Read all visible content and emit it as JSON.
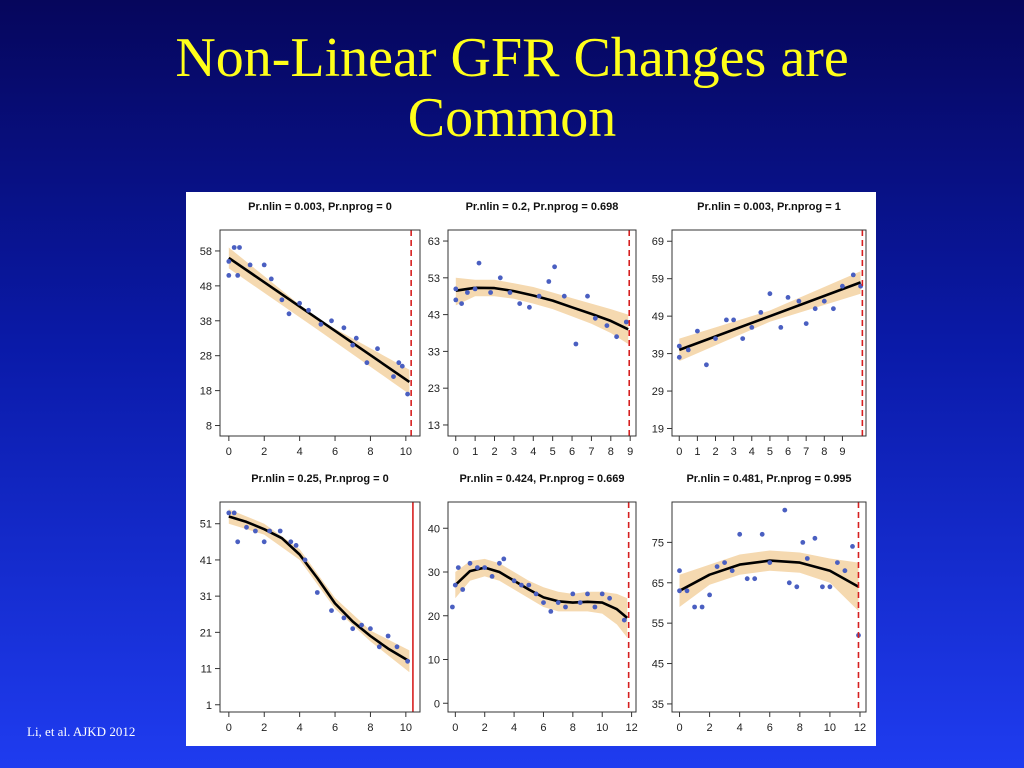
{
  "slide": {
    "title_line1": "Non-Linear GFR Changes are",
    "title_line2": "Common",
    "citation": "Li, et al. AJKD 2012",
    "colors": {
      "title": "#ffff1a",
      "background_top": "#06065c",
      "background_bottom": "#1f3cf0",
      "points": "#4a5fc1",
      "fit_line": "#000000",
      "confidence_band": "#f5d9b0",
      "vline": "#d62020"
    }
  },
  "chart_data": [
    {
      "type": "scatter",
      "title": "Pr.nlin = 0.003, Pr.nprog = 0",
      "xlim": [
        -0.5,
        10.8
      ],
      "ylim": [
        5,
        64
      ],
      "xticks": [
        0,
        2,
        4,
        6,
        8,
        10
      ],
      "yticks": [
        8,
        18,
        28,
        38,
        48,
        58
      ],
      "vline": {
        "x": 10.3,
        "style": "dashed"
      },
      "points": [
        [
          0,
          55
        ],
        [
          0,
          51
        ],
        [
          0.3,
          59
        ],
        [
          0.5,
          51
        ],
        [
          0.6,
          59
        ],
        [
          1.2,
          54
        ],
        [
          2,
          54
        ],
        [
          2.4,
          50
        ],
        [
          3,
          44
        ],
        [
          3.4,
          40
        ],
        [
          4,
          43
        ],
        [
          4.5,
          41
        ],
        [
          5.2,
          37
        ],
        [
          5.8,
          38
        ],
        [
          6.5,
          36
        ],
        [
          7.2,
          33
        ],
        [
          7.8,
          26
        ],
        [
          8.4,
          30
        ],
        [
          9.3,
          22
        ],
        [
          9.8,
          25
        ],
        [
          10.1,
          17
        ],
        [
          9.6,
          26
        ],
        [
          7,
          31
        ]
      ],
      "fit": [
        [
          0,
          56
        ],
        [
          10.2,
          20.5
        ]
      ],
      "band": {
        "upper": [
          [
            0,
            59
          ],
          [
            5,
            38.5
          ],
          [
            10.2,
            24
          ]
        ],
        "lower": [
          [
            0,
            53
          ],
          [
            5,
            35.5
          ],
          [
            10.2,
            17
          ]
        ]
      }
    },
    {
      "type": "scatter",
      "title": "Pr.nlin = 0.2, Pr.nprog = 0.698",
      "xlim": [
        -0.4,
        9.3
      ],
      "ylim": [
        10,
        66
      ],
      "xticks": [
        0,
        1,
        2,
        3,
        4,
        5,
        6,
        7,
        8,
        9
      ],
      "yticks": [
        13,
        23,
        33,
        43,
        53,
        63
      ],
      "vline": {
        "x": 8.95,
        "style": "dashed"
      },
      "points": [
        [
          0,
          47
        ],
        [
          0,
          50
        ],
        [
          0.3,
          46
        ],
        [
          0.6,
          49
        ],
        [
          1,
          50
        ],
        [
          1.2,
          57
        ],
        [
          1.8,
          49
        ],
        [
          2.3,
          53
        ],
        [
          2.8,
          49
        ],
        [
          3.3,
          46
        ],
        [
          3.8,
          45
        ],
        [
          4.3,
          48
        ],
        [
          4.8,
          52
        ],
        [
          5.1,
          56
        ],
        [
          5.6,
          48
        ],
        [
          6.2,
          35
        ],
        [
          6.8,
          48
        ],
        [
          7.2,
          42
        ],
        [
          7.8,
          40
        ],
        [
          8.3,
          37
        ],
        [
          8.8,
          41
        ]
      ],
      "fit": [
        [
          0,
          49.5
        ],
        [
          1,
          50.3
        ],
        [
          2,
          50.2
        ],
        [
          3,
          49.4
        ],
        [
          4,
          48.2
        ],
        [
          5,
          46.8
        ],
        [
          6,
          45
        ],
        [
          7,
          43.2
        ],
        [
          8,
          41.3
        ],
        [
          8.9,
          39
        ]
      ],
      "band": {
        "upper": [
          [
            0,
            53
          ],
          [
            1,
            52.5
          ],
          [
            2,
            52.5
          ],
          [
            3,
            51.5
          ],
          [
            4,
            50.5
          ],
          [
            5,
            49
          ],
          [
            6,
            47.5
          ],
          [
            7,
            46
          ],
          [
            8,
            44.5
          ],
          [
            8.9,
            43
          ]
        ],
        "lower": [
          [
            0,
            45.5
          ],
          [
            1,
            48
          ],
          [
            2,
            48
          ],
          [
            3,
            47.3
          ],
          [
            4,
            46
          ],
          [
            5,
            44.5
          ],
          [
            6,
            42.5
          ],
          [
            7,
            40.5
          ],
          [
            8,
            38
          ],
          [
            8.9,
            35
          ]
        ]
      }
    },
    {
      "type": "scatter",
      "title": "Pr.nlin = 0.003, Pr.nprog = 1",
      "xlim": [
        -0.4,
        10.3
      ],
      "ylim": [
        17,
        72
      ],
      "xticks": [
        0,
        1,
        2,
        3,
        4,
        5,
        6,
        7,
        8,
        9
      ],
      "yticks": [
        19,
        29,
        39,
        49,
        59,
        69
      ],
      "vline": {
        "x": 10.1,
        "style": "dashed"
      },
      "points": [
        [
          0,
          38
        ],
        [
          0,
          41
        ],
        [
          0.5,
          40
        ],
        [
          1,
          45
        ],
        [
          1.5,
          36
        ],
        [
          2,
          43
        ],
        [
          2.6,
          48
        ],
        [
          3,
          48
        ],
        [
          3.5,
          43
        ],
        [
          4,
          46
        ],
        [
          4.5,
          50
        ],
        [
          5,
          55
        ],
        [
          5.6,
          46
        ],
        [
          6,
          54
        ],
        [
          6.6,
          53
        ],
        [
          7,
          47
        ],
        [
          7.5,
          51
        ],
        [
          8,
          53
        ],
        [
          8.5,
          51
        ],
        [
          9,
          57
        ],
        [
          9.6,
          60
        ],
        [
          10,
          57
        ]
      ],
      "fit": [
        [
          0,
          40
        ],
        [
          10,
          58
        ]
      ],
      "band": {
        "upper": [
          [
            0,
            43
          ],
          [
            5,
            50.5
          ],
          [
            10,
            61
          ]
        ],
        "lower": [
          [
            0,
            37
          ],
          [
            5,
            47.5
          ],
          [
            10,
            55
          ]
        ]
      }
    },
    {
      "type": "scatter",
      "title": "Pr.nlin = 0.25, Pr.nprog = 0",
      "xlim": [
        -0.5,
        10.8
      ],
      "ylim": [
        -1,
        57
      ],
      "xticks": [
        0,
        2,
        4,
        6,
        8,
        10
      ],
      "yticks": [
        1,
        11,
        21,
        31,
        41,
        51
      ],
      "vline": {
        "x": 10.4,
        "style": "solid"
      },
      "points": [
        [
          0,
          54
        ],
        [
          0.3,
          54
        ],
        [
          0.5,
          46
        ],
        [
          1,
          50
        ],
        [
          1.5,
          49
        ],
        [
          2,
          46
        ],
        [
          2.3,
          49
        ],
        [
          2.9,
          49
        ],
        [
          3.5,
          46
        ],
        [
          3.8,
          45
        ],
        [
          4.3,
          41
        ],
        [
          5,
          32
        ],
        [
          5.8,
          27
        ],
        [
          6.5,
          25
        ],
        [
          7,
          22
        ],
        [
          7.5,
          23
        ],
        [
          8,
          22
        ],
        [
          8.5,
          17
        ],
        [
          9,
          20
        ],
        [
          9.5,
          17
        ],
        [
          10.1,
          13
        ]
      ],
      "fit": [
        [
          0,
          53
        ],
        [
          1,
          51.5
        ],
        [
          2,
          49.5
        ],
        [
          3,
          47
        ],
        [
          4,
          42.5
        ],
        [
          5,
          36
        ],
        [
          6,
          29
        ],
        [
          7,
          24
        ],
        [
          8,
          20
        ],
        [
          9,
          16.5
        ],
        [
          10.2,
          13
        ]
      ],
      "band": {
        "upper": [
          [
            0,
            55
          ],
          [
            2,
            51
          ],
          [
            4,
            44
          ],
          [
            6,
            30.5
          ],
          [
            8,
            21.5
          ],
          [
            10.2,
            16
          ]
        ],
        "lower": [
          [
            0,
            51
          ],
          [
            2,
            48
          ],
          [
            4,
            41
          ],
          [
            6,
            27.5
          ],
          [
            8,
            18.5
          ],
          [
            10.2,
            10
          ]
        ]
      }
    },
    {
      "type": "scatter",
      "title": "Pr.nlin = 0.424, Pr.nprog = 0.669",
      "xlim": [
        -0.5,
        12.3
      ],
      "ylim": [
        -2,
        46
      ],
      "xticks": [
        0,
        2,
        4,
        6,
        8,
        10,
        12
      ],
      "yticks": [
        0,
        10,
        20,
        30,
        40
      ],
      "vline": {
        "x": 11.8,
        "style": "dashed"
      },
      "points": [
        [
          -0.2,
          22
        ],
        [
          0,
          27
        ],
        [
          0.2,
          31
        ],
        [
          0.5,
          26
        ],
        [
          1,
          32
        ],
        [
          1.5,
          31
        ],
        [
          2,
          31
        ],
        [
          2.5,
          29
        ],
        [
          3,
          32
        ],
        [
          3.3,
          33
        ],
        [
          4,
          28
        ],
        [
          4.5,
          27
        ],
        [
          5,
          27
        ],
        [
          5.5,
          25
        ],
        [
          6,
          23
        ],
        [
          6.5,
          21
        ],
        [
          7,
          23
        ],
        [
          7.5,
          22
        ],
        [
          8,
          25
        ],
        [
          8.5,
          23
        ],
        [
          9,
          25
        ],
        [
          9.5,
          22
        ],
        [
          10,
          25
        ],
        [
          10.5,
          24
        ],
        [
          11.5,
          19
        ]
      ],
      "fit": [
        [
          0,
          27
        ],
        [
          1,
          30.2
        ],
        [
          2,
          31
        ],
        [
          3,
          30
        ],
        [
          4,
          28
        ],
        [
          5,
          26
        ],
        [
          6,
          24.2
        ],
        [
          7,
          23.3
        ],
        [
          8,
          23
        ],
        [
          9,
          23.2
        ],
        [
          10,
          23
        ],
        [
          11,
          21.5
        ],
        [
          11.7,
          19.5
        ]
      ],
      "band": {
        "upper": [
          [
            0,
            30
          ],
          [
            1,
            32.5
          ],
          [
            2,
            33
          ],
          [
            3,
            32
          ],
          [
            4,
            30
          ],
          [
            5,
            28
          ],
          [
            6,
            26.5
          ],
          [
            7,
            25.5
          ],
          [
            8,
            25
          ],
          [
            9,
            25.5
          ],
          [
            10,
            25.5
          ],
          [
            11,
            25
          ],
          [
            11.7,
            24
          ]
        ],
        "lower": [
          [
            0,
            24
          ],
          [
            1,
            28
          ],
          [
            2,
            29
          ],
          [
            3,
            28
          ],
          [
            4,
            26
          ],
          [
            5,
            24
          ],
          [
            6,
            22
          ],
          [
            7,
            21
          ],
          [
            8,
            21
          ],
          [
            9,
            21
          ],
          [
            10,
            20.5
          ],
          [
            11,
            18
          ],
          [
            11.7,
            15
          ]
        ]
      }
    },
    {
      "type": "scatter",
      "title": "Pr.nlin = 0.481, Pr.nprog = 0.995",
      "xlim": [
        -0.5,
        12.4
      ],
      "ylim": [
        33,
        85
      ],
      "xticks": [
        0,
        2,
        4,
        6,
        8,
        10,
        12
      ],
      "yticks": [
        35,
        45,
        55,
        65,
        75
      ],
      "vline": {
        "x": 11.9,
        "style": "dashed"
      },
      "points": [
        [
          0,
          63
        ],
        [
          0,
          68
        ],
        [
          0.5,
          63
        ],
        [
          1,
          59
        ],
        [
          1.5,
          59
        ],
        [
          2,
          62
        ],
        [
          2.5,
          69
        ],
        [
          3,
          70
        ],
        [
          3.5,
          68
        ],
        [
          4,
          77
        ],
        [
          4.5,
          66
        ],
        [
          5,
          66
        ],
        [
          5.5,
          77
        ],
        [
          6,
          70
        ],
        [
          7,
          83
        ],
        [
          7.3,
          65
        ],
        [
          7.8,
          64
        ],
        [
          8.2,
          75
        ],
        [
          8.5,
          71
        ],
        [
          9,
          76
        ],
        [
          9.5,
          64
        ],
        [
          10,
          64
        ],
        [
          10.5,
          70
        ],
        [
          11,
          68
        ],
        [
          11.5,
          74
        ],
        [
          11.9,
          52
        ]
      ],
      "fit": [
        [
          0,
          63
        ],
        [
          2,
          67
        ],
        [
          4,
          69.5
        ],
        [
          6,
          70.5
        ],
        [
          8,
          70
        ],
        [
          10,
          68
        ],
        [
          11.9,
          64
        ]
      ],
      "band": {
        "upper": [
          [
            0,
            67
          ],
          [
            2,
            69.5
          ],
          [
            4,
            72
          ],
          [
            6,
            73
          ],
          [
            8,
            72.5
          ],
          [
            10,
            71
          ],
          [
            11.9,
            70
          ]
        ],
        "lower": [
          [
            0,
            59
          ],
          [
            2,
            64.5
          ],
          [
            4,
            67
          ],
          [
            6,
            68
          ],
          [
            8,
            67.5
          ],
          [
            10,
            65
          ],
          [
            11.9,
            58
          ]
        ]
      }
    }
  ]
}
